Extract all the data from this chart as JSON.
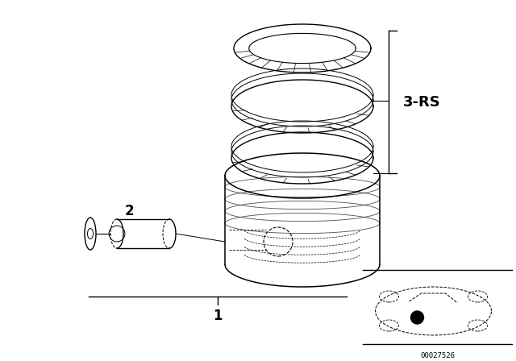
{
  "bg_color": "#ffffff",
  "line_color": "#000000",
  "label_3rs": "3-RS",
  "label_1": "1",
  "label_2": "2",
  "part_code": "00027526",
  "figsize": [
    6.4,
    4.48
  ],
  "dpi": 100
}
